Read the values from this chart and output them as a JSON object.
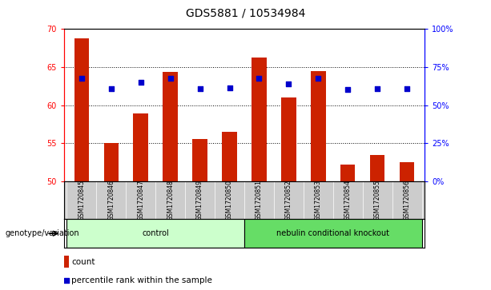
{
  "title": "GDS5881 / 10534984",
  "samples": [
    "GSM1720845",
    "GSM1720846",
    "GSM1720847",
    "GSM1720848",
    "GSM1720849",
    "GSM1720850",
    "GSM1720851",
    "GSM1720852",
    "GSM1720853",
    "GSM1720854",
    "GSM1720855",
    "GSM1720856"
  ],
  "counts": [
    68.8,
    55.0,
    58.9,
    64.4,
    55.5,
    56.5,
    66.3,
    61.0,
    64.5,
    52.2,
    53.5,
    52.5
  ],
  "percentiles": [
    63.5,
    62.2,
    63.0,
    63.5,
    62.2,
    62.3,
    63.5,
    62.8,
    63.5,
    62.1,
    62.2,
    62.2
  ],
  "ylim_left": [
    50,
    70
  ],
  "ylim_right": [
    0,
    100
  ],
  "yticks_left": [
    50,
    55,
    60,
    65,
    70
  ],
  "yticks_right": [
    0,
    25,
    50,
    75,
    100
  ],
  "ytick_labels_right": [
    "0%",
    "25%",
    "50%",
    "75%",
    "100%"
  ],
  "bar_color": "#cc2200",
  "dot_color": "#0000cc",
  "bar_width": 0.5,
  "groups": [
    {
      "label": "control",
      "indices": [
        0,
        1,
        2,
        3,
        4,
        5
      ],
      "color": "#ccffcc"
    },
    {
      "label": "nebulin conditional knockout",
      "indices": [
        6,
        7,
        8,
        9,
        10,
        11
      ],
      "color": "#66dd66"
    }
  ],
  "group_row_label": "genotype/variation",
  "legend_count_label": "count",
  "legend_percentile_label": "percentile rank within the sample",
  "axis_bg_color": "#ffffff",
  "tick_area_bg": "#cccccc",
  "legend_fontsize": 7.5,
  "title_fontsize": 10,
  "grid_ticks": [
    55,
    60,
    65
  ]
}
